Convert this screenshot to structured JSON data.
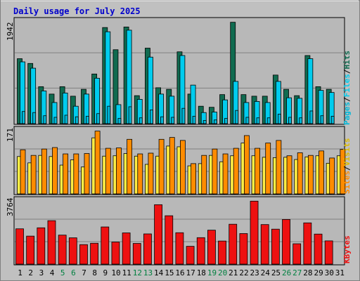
{
  "title": "Daily usage for July 2025",
  "colors": {
    "background": "#c0c0c0",
    "panel": "#b8b8b8",
    "grid": "#808080",
    "title": "#0000cc",
    "weekend_label": "#008040",
    "weekday_label": "#000000",
    "hits": "#106b50",
    "files": "#00ccee",
    "pages": "#00b8d8",
    "visits": "#ff8c00",
    "sites": "#ffee44",
    "kbytes": "#ee1111"
  },
  "chart_data": [
    {
      "type": "bar",
      "panel": "hits_files_pages",
      "ymax_label": "1942",
      "ylim": [
        0,
        1942
      ],
      "grid": true,
      "categories": [
        "1",
        "2",
        "3",
        "4",
        "5",
        "6",
        "7",
        "8",
        "9",
        "10",
        "11",
        "12",
        "13",
        "14",
        "15",
        "16",
        "17",
        "18",
        "19",
        "20",
        "21",
        "22",
        "23",
        "24",
        "25",
        "26",
        "27",
        "28",
        "29",
        "30",
        "31"
      ],
      "weekend_days": [
        "5",
        "6",
        "12",
        "13",
        "19",
        "20",
        "26",
        "27"
      ],
      "legend": {
        "position": "right",
        "labels": [
          "Pages",
          "Files",
          "Hits"
        ],
        "separator": "/"
      },
      "series": [
        {
          "name": "Hits",
          "values": [
            1230,
            1140,
            700,
            560,
            700,
            520,
            650,
            940,
            1820,
            1400,
            1830,
            530,
            1430,
            680,
            650,
            1360,
            560,
            330,
            310,
            550,
            1920,
            550,
            520,
            520,
            920,
            650,
            530,
            1290,
            700,
            650,
            0
          ]
        },
        {
          "name": "Files",
          "values": [
            1170,
            1050,
            620,
            400,
            580,
            330,
            560,
            860,
            1740,
            360,
            1770,
            460,
            1260,
            560,
            520,
            1290,
            730,
            210,
            220,
            450,
            800,
            400,
            420,
            400,
            800,
            490,
            480,
            1230,
            630,
            590,
            0
          ]
        },
        {
          "name": "Pages",
          "values": [
            230,
            210,
            150,
            120,
            160,
            130,
            140,
            190,
            330,
            100,
            320,
            110,
            260,
            130,
            120,
            290,
            140,
            60,
            70,
            100,
            250,
            120,
            110,
            110,
            180,
            120,
            110,
            240,
            150,
            140,
            0
          ]
        }
      ]
    },
    {
      "type": "bar",
      "panel": "visits_sites",
      "ymax_label": "171",
      "ylim": [
        0,
        171
      ],
      "grid": true,
      "legend": {
        "position": "right",
        "labels": [
          "Sites",
          "Visits"
        ],
        "separator": "/"
      },
      "series": [
        {
          "name": "Visits",
          "values": [
            118,
            103,
            120,
            124,
            107,
            107,
            108,
            168,
            122,
            123,
            146,
            107,
            109,
            146,
            151,
            143,
            81,
            103,
            120,
            107,
            122,
            156,
            122,
            136,
            143,
            102,
            110,
            103,
            115,
            96,
            119
          ]
        },
        {
          "name": "Sites",
          "values": [
            100,
            83,
            103,
            100,
            77,
            91,
            72,
            150,
            101,
            102,
            108,
            101,
            79,
            101,
            128,
            126,
            75,
            81,
            103,
            86,
            102,
            136,
            102,
            98,
            97,
            98,
            92,
            99,
            102,
            82,
            102
          ]
        }
      ]
    },
    {
      "type": "bar",
      "panel": "kbytes",
      "ymax_label": "3764",
      "ylim": [
        0,
        3764
      ],
      "grid": true,
      "legend": {
        "position": "right",
        "labels": [
          "KBytes"
        ]
      },
      "series": [
        {
          "name": "KBytes",
          "values": [
            2080,
            1650,
            2140,
            2560,
            1710,
            1550,
            1150,
            1230,
            2190,
            1300,
            1840,
            1220,
            1780,
            3500,
            2850,
            1850,
            1050,
            1560,
            2000,
            1360,
            2350,
            1800,
            3710,
            2330,
            2060,
            2630,
            1200,
            2430,
            1770,
            1370,
            0
          ]
        }
      ]
    }
  ]
}
